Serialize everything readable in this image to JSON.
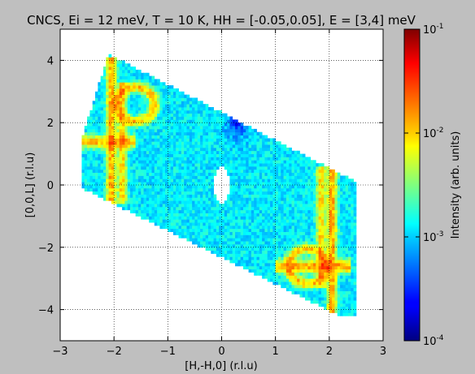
{
  "chart_data": {
    "type": "heatmap",
    "title": "CNCS, Ei = 12 meV, T = 10 K, HH = [-0.05,0.05], E = [3,4] meV",
    "xlabel": "[H,-H,0] (r.l.u)",
    "ylabel": "[0,0,L] (r.l.u)",
    "xlim": [
      -3,
      3
    ],
    "ylim": [
      -5,
      5
    ],
    "x_ticks": [
      "−3",
      "−2",
      "−1",
      "0",
      "1",
      "2",
      "3"
    ],
    "y_ticks": [
      "−4",
      "−2",
      "0",
      "2",
      "4"
    ],
    "grid": true,
    "colormap": "jet",
    "colorbar": {
      "label": "Intensity (arb. units)",
      "scale": "log",
      "range": [
        0.0001,
        0.1
      ],
      "tick_labels": [
        {
          "base": "10",
          "exp": "-1"
        },
        {
          "base": "10",
          "exp": "-2"
        },
        {
          "base": "10",
          "exp": "-3"
        },
        {
          "base": "10",
          "exp": "-4"
        }
      ]
    },
    "coverage_polygon": [
      [
        -2.1,
        4.2
      ],
      [
        2.5,
        0.1
      ],
      [
        2.5,
        -4.2
      ],
      [
        2.2,
        -4.2
      ],
      [
        -2.6,
        -0.1
      ],
      [
        -2.6,
        1.5
      ],
      [
        -2.1,
        4.2
      ]
    ],
    "masked_hole": {
      "center": [
        0.0,
        0.0
      ],
      "rx": 0.15,
      "ry": 0.6
    },
    "background_intensity": 0.0012,
    "features": [
      {
        "kind": "ridge",
        "x": -2.05,
        "y_range": [
          -0.6,
          4.1
        ],
        "intensity": 0.012
      },
      {
        "kind": "ridge",
        "x": 2.05,
        "y_range": [
          -4.1,
          0.6
        ],
        "intensity": 0.012
      },
      {
        "kind": "ridge",
        "x": -1.85,
        "y_range": [
          -0.6,
          3.3
        ],
        "intensity": 0.008
      },
      {
        "kind": "ridge",
        "x": 1.85,
        "y_range": [
          -3.3,
          0.6
        ],
        "intensity": 0.008
      },
      {
        "kind": "arc",
        "center": [
          -1.6,
          2.6
        ],
        "intensity": 0.01
      },
      {
        "kind": "arc",
        "center": [
          1.6,
          -2.6
        ],
        "intensity": 0.01
      },
      {
        "kind": "band",
        "y": 1.4,
        "x_range": [
          -2.6,
          -1.6
        ],
        "intensity": 0.01
      },
      {
        "kind": "band",
        "y": -2.6,
        "x_range": [
          1.0,
          2.4
        ],
        "intensity": 0.012
      },
      {
        "kind": "cold_spot",
        "center": [
          0.3,
          2.0
        ],
        "intensity": 0.0003
      }
    ]
  }
}
